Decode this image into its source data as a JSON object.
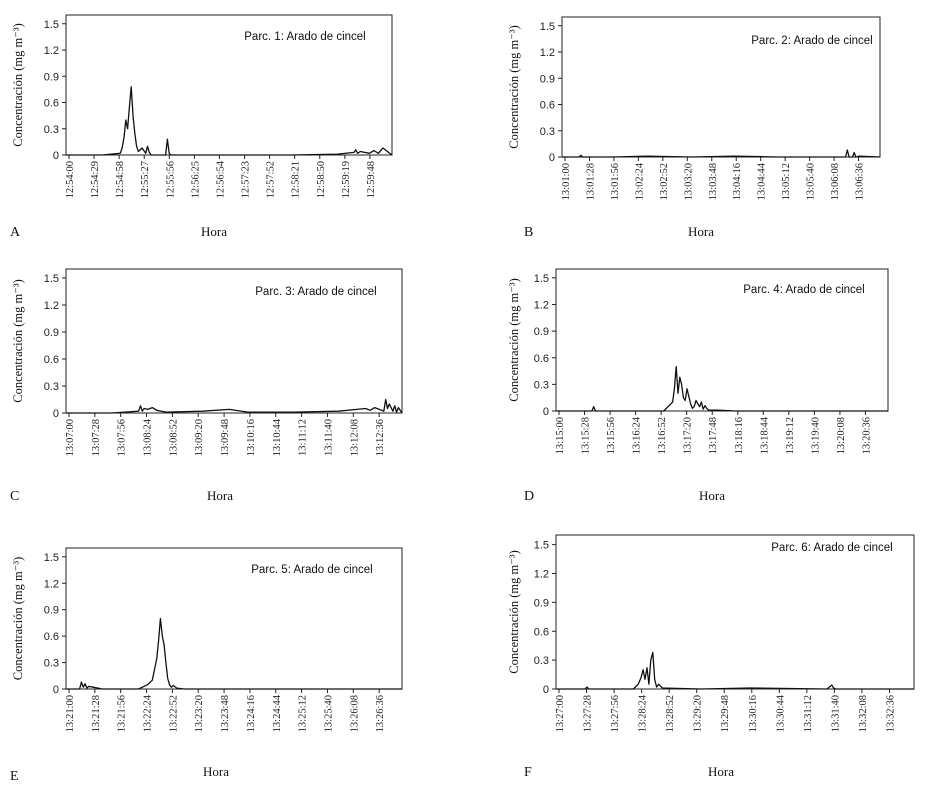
{
  "colors": {
    "line": "#111111",
    "frame": "#222222"
  },
  "chart_data": [
    {
      "type": "line",
      "panel_label": "A",
      "title": "Parc. 1: Arado de cincel",
      "xlabel": "Hora",
      "ylabel": "Concentración (mg m⁻³)",
      "ylim": [
        0,
        1.6
      ],
      "yticks": [
        "0",
        "0.3",
        "0.6",
        "0.9",
        "1.2",
        "1.5"
      ],
      "xlim": [
        0,
        360
      ],
      "xticks": [
        "12:54:00",
        "12:54:29",
        "12:54:58",
        "12:55:27",
        "12:55:56",
        "12:56:25",
        "12:56:54",
        "12:57:23",
        "12:57:52",
        "12:58:21",
        "12:58:50",
        "12:59:19",
        "12:59:48"
      ],
      "series": [
        {
          "name": "Concentración",
          "x": [
            0,
            40,
            60,
            62,
            64,
            66,
            68,
            70,
            72,
            74,
            76,
            78,
            80,
            84,
            88,
            90,
            92,
            94,
            110,
            112,
            114,
            116,
            150,
            200,
            250,
            300,
            318,
            320,
            322,
            325,
            330,
            335,
            340,
            345,
            350,
            360
          ],
          "y": [
            0,
            0,
            0.02,
            0.08,
            0.2,
            0.4,
            0.3,
            0.55,
            0.78,
            0.45,
            0.25,
            0.1,
            0.04,
            0.08,
            0.02,
            0.1,
            0.03,
            0,
            0,
            0.18,
            0.02,
            0,
            0,
            0,
            0,
            0.01,
            0.03,
            0.06,
            0.02,
            0.04,
            0.03,
            0.02,
            0.05,
            0.02,
            0.08,
            0
          ]
        }
      ]
    },
    {
      "type": "line",
      "panel_label": "B",
      "title": "Parc. 2: Arado de cincel",
      "xlabel": "Hora",
      "ylabel": "Concentración (mg m⁻³)",
      "ylim": [
        0,
        1.6
      ],
      "yticks": [
        "0",
        "0.3",
        "0.6",
        "0.9",
        "1.2",
        "1.5"
      ],
      "xlim": [
        0,
        370
      ],
      "xticks": [
        "13:01:00",
        "13:01:28",
        "13:01:56",
        "13:02:24",
        "13:02:52",
        "13:03:20",
        "13:03:48",
        "13:04:16",
        "13:04:44",
        "13:05:12",
        "13:05:40",
        "13:06:08",
        "13:06:36"
      ],
      "series": [
        {
          "name": "Concentración",
          "x": [
            0,
            20,
            22,
            24,
            60,
            100,
            150,
            200,
            250,
            300,
            330,
            332,
            334,
            338,
            340,
            342,
            346,
            370
          ],
          "y": [
            0,
            0,
            0.02,
            0,
            0,
            0.01,
            0,
            0.01,
            0,
            0,
            0,
            0.08,
            0,
            0,
            0.05,
            0,
            0.01,
            0
          ]
        }
      ]
    },
    {
      "type": "line",
      "panel_label": "C",
      "title": "Parc. 3: Arado de cincel",
      "xlabel": "Hora",
      "ylabel": "Concentración (mg m⁻³)",
      "ylim": [
        0,
        1.6
      ],
      "yticks": [
        "0",
        "0.3",
        "0.6",
        "0.9",
        "1.2",
        "1.5"
      ],
      "xlim": [
        0,
        370
      ],
      "xticks": [
        "13:07:00",
        "13:07:28",
        "13:07:56",
        "13:08:24",
        "13:08:52",
        "13:09:20",
        "13:09:48",
        "13:10:16",
        "13:10:44",
        "13:11:12",
        "13:11:40",
        "13:12:08",
        "13:12:36"
      ],
      "series": [
        {
          "name": "Concentración",
          "x": [
            0,
            50,
            80,
            82,
            84,
            86,
            90,
            95,
            100,
            110,
            150,
            180,
            200,
            250,
            300,
            330,
            335,
            340,
            350,
            352,
            354,
            356,
            360,
            362,
            364,
            366,
            370
          ],
          "y": [
            0,
            0,
            0.02,
            0.08,
            0.02,
            0.05,
            0.04,
            0.06,
            0.03,
            0.01,
            0.02,
            0.04,
            0.01,
            0.01,
            0.02,
            0.05,
            0.03,
            0.06,
            0.02,
            0.15,
            0.05,
            0.1,
            0.02,
            0.08,
            0.01,
            0.06,
            0
          ]
        }
      ]
    },
    {
      "type": "line",
      "panel_label": "D",
      "title": "Parc. 4: Arado de cincel",
      "xlabel": "Hora",
      "ylabel": "Concentración (mg m⁻³)",
      "ylim": [
        0,
        1.6
      ],
      "yticks": [
        "0",
        "0.3",
        "0.6",
        "0.9",
        "1.2",
        "1.5"
      ],
      "xlim": [
        0,
        370
      ],
      "xticks": [
        "13:15:00",
        "13:15:28",
        "13:15:56",
        "13:16:24",
        "13:16:52",
        "13:17:20",
        "13:17:48",
        "13:18:16",
        "13:18:44",
        "13:19:12",
        "13:19:40",
        "13:20:08",
        "13:20:36"
      ],
      "series": [
        {
          "name": "Concentración",
          "x": [
            0,
            40,
            42,
            44,
            120,
            130,
            132,
            134,
            136,
            138,
            140,
            142,
            144,
            146,
            150,
            152,
            154,
            156,
            158,
            160,
            162,
            164,
            166,
            168,
            170,
            180,
            200,
            250,
            370
          ],
          "y": [
            0,
            0,
            0.05,
            0,
            0,
            0.1,
            0.25,
            0.5,
            0.2,
            0.38,
            0.3,
            0.15,
            0.12,
            0.25,
            0.08,
            0.03,
            0.05,
            0.12,
            0.08,
            0.05,
            0.1,
            0.02,
            0.06,
            0.03,
            0.01,
            0.01,
            0,
            0,
            0
          ]
        }
      ]
    },
    {
      "type": "line",
      "panel_label": "E",
      "title": "Parc. 5: Arado de cincel",
      "xlabel": "Hora",
      "ylabel": "Concentración (mg m⁻³)",
      "ylim": [
        0,
        1.6
      ],
      "yticks": [
        "0",
        "0.3",
        "0.6",
        "0.9",
        "1.2",
        "1.5"
      ],
      "xlim": [
        0,
        370
      ],
      "xticks": [
        "13:21:00",
        "13:21:28",
        "13:21:56",
        "13:22:24",
        "13:22:52",
        "13:23:20",
        "13:23:48",
        "13:24:16",
        "13:24:44",
        "13:25:12",
        "13:25:40",
        "13:26:08",
        "13:26:36"
      ],
      "series": [
        {
          "name": "Concentración",
          "x": [
            0,
            15,
            17,
            19,
            21,
            23,
            25,
            30,
            40,
            80,
            90,
            95,
            100,
            102,
            104,
            106,
            108,
            110,
            112,
            114,
            116,
            118,
            122,
            130,
            200,
            370
          ],
          "y": [
            0,
            0,
            0.08,
            0.02,
            0.06,
            0.01,
            0.03,
            0.02,
            0,
            0,
            0.05,
            0.1,
            0.35,
            0.55,
            0.8,
            0.6,
            0.5,
            0.3,
            0.12,
            0.05,
            0.02,
            0.04,
            0.01,
            0,
            0,
            0
          ]
        }
      ]
    },
    {
      "type": "line",
      "panel_label": "F",
      "title": "Parc. 6: Arado de cincel",
      "xlabel": "Hora",
      "ylabel": "Concentración (mg m⁻³)",
      "ylim": [
        0,
        1.6
      ],
      "yticks": [
        "0",
        "0.3",
        "0.6",
        "0.9",
        "1.2",
        "1.5"
      ],
      "xlim": [
        0,
        370
      ],
      "xticks": [
        "13:27:00",
        "13:27:28",
        "13:27:56",
        "13:28:24",
        "13:28:52",
        "13:29:20",
        "13:29:48",
        "13:30:16",
        "13:30:44",
        "13:31:12",
        "13:31:40",
        "13:32:08",
        "13:32:36"
      ],
      "series": [
        {
          "name": "Concentración",
          "x": [
            0,
            30,
            32,
            34,
            80,
            85,
            88,
            90,
            92,
            94,
            96,
            98,
            100,
            102,
            104,
            106,
            110,
            150,
            200,
            280,
            285,
            287,
            289,
            370
          ],
          "y": [
            0,
            0,
            0.02,
            0,
            0,
            0.05,
            0.12,
            0.2,
            0.1,
            0.22,
            0.05,
            0.3,
            0.38,
            0.1,
            0.02,
            0.05,
            0.01,
            0,
            0.01,
            0,
            0.04,
            0.01,
            0,
            0
          ]
        }
      ]
    }
  ]
}
